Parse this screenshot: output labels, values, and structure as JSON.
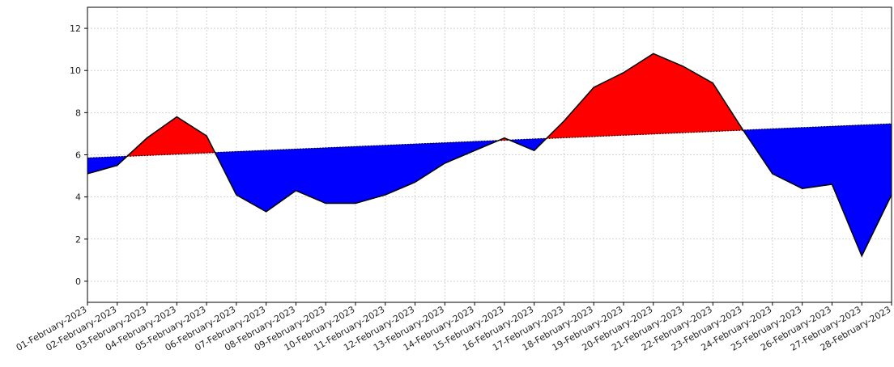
{
  "chart_data": {
    "type": "area",
    "title": "",
    "xlabel": "",
    "ylabel": "",
    "categories": [
      "01-February-2023",
      "02-February-2023",
      "03-February-2023",
      "04-February-2023",
      "05-February-2023",
      "06-February-2023",
      "07-February-2023",
      "08-February-2023",
      "09-February-2023",
      "10-February-2023",
      "11-February-2023",
      "12-February-2023",
      "13-February-2023",
      "14-February-2023",
      "15-February-2023",
      "16-February-2023",
      "17-February-2023",
      "18-February-2023",
      "19-February-2023",
      "20-February-2023",
      "21-February-2023",
      "22-February-2023",
      "23-February-2023",
      "24-February-2023",
      "25-February-2023",
      "26-February-2023",
      "27-February-2023",
      "28-February-2023"
    ],
    "series": [
      {
        "values": [
          5.1,
          5.5,
          6.8,
          7.8,
          6.9,
          4.1,
          3.3,
          4.3,
          3.7,
          3.7,
          4.1,
          4.7,
          5.6,
          6.2,
          6.8,
          6.2,
          7.6,
          9.2,
          9.9,
          10.8,
          10.2,
          9.4,
          7.2,
          5.1,
          4.4,
          4.6,
          1.2,
          4.1
        ]
      },
      {
        "values": [
          5.85,
          5.91,
          5.97,
          6.03,
          6.09,
          6.15,
          6.21,
          6.27,
          6.33,
          6.39,
          6.45,
          6.51,
          6.57,
          6.63,
          6.69,
          6.75,
          6.81,
          6.87,
          6.93,
          6.99,
          7.05,
          7.11,
          7.17,
          7.23,
          7.29,
          7.35,
          7.41,
          7.47
        ],
        "style": "dotted"
      }
    ],
    "fill_above_color": "#ff0000",
    "fill_below_color": "#0000ff",
    "line_color": "#000000",
    "ylim": [
      -1,
      13
    ],
    "yticks": [
      0,
      2,
      4,
      6,
      8,
      10,
      12
    ],
    "grid": true
  }
}
